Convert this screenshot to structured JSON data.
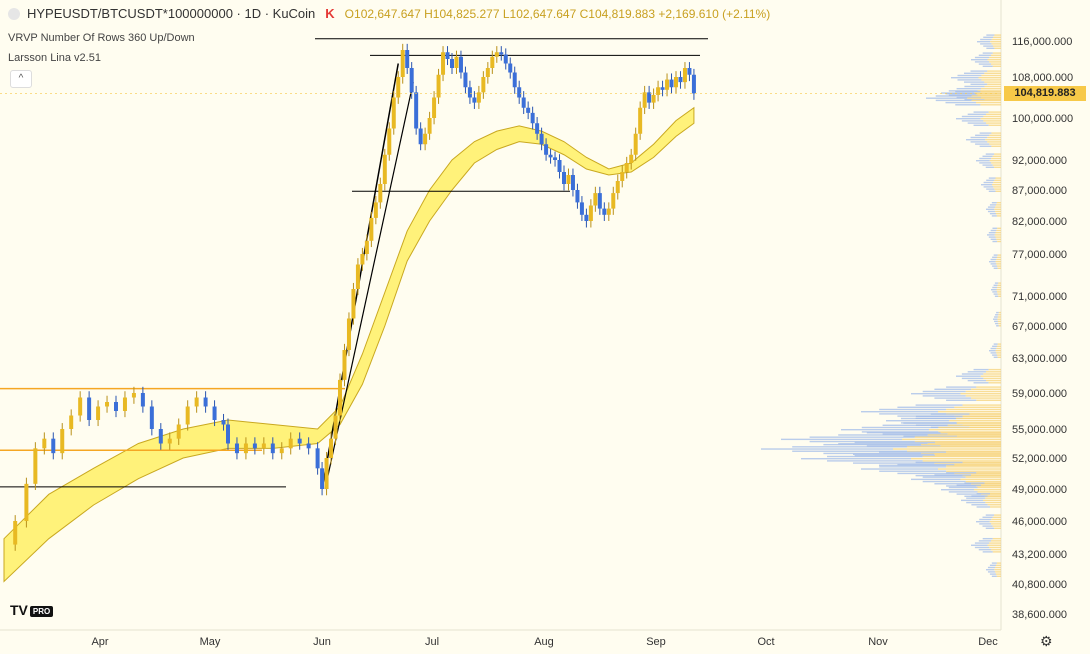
{
  "header": {
    "symbol": "HYPEUSDT/BTCUSDT*100000000 · 1D · KuCoin",
    "o_label": "O",
    "o": "102,647.647",
    "h_label": "H",
    "h": "104,825.277",
    "l_label": "L",
    "l": "102,647.647",
    "c_label": "C",
    "c": "104,819.883",
    "change": "+2,169.610 (+2.11%)"
  },
  "indicators": [
    "VRVP Number Of Rows 360 Up/Down",
    "Larsson Lina v2.51"
  ],
  "collapse_icon": "chevron-up-icon",
  "brand": {
    "logo": "TV",
    "badge": "PRO"
  },
  "last_price_label": "104,819.883",
  "colors": {
    "background": "#fffdf0",
    "up": "#e8b923",
    "down": "#3b6fd8",
    "band": "#fff27a",
    "accent": "#f7c948"
  },
  "chart_data": {
    "type": "candlestick",
    "x_axis_labels": [
      "Apr",
      "May",
      "Jun",
      "Jul",
      "Aug",
      "Sep",
      "Oct",
      "Nov",
      "Dec"
    ],
    "y_axis_labels": [
      "116,000.000",
      "108,000.000",
      "100,000.000",
      "92,000.000",
      "87,000.000",
      "82,000.000",
      "77,000.000",
      "71,000.000",
      "67,000.000",
      "63,000.000",
      "59,000.000",
      "55,000.000",
      "52,000.000",
      "49,000.000",
      "46,000.000",
      "43,200.000",
      "40,800.000",
      "38,600.000"
    ],
    "y_axis_values": [
      116000,
      108000,
      100000,
      92000,
      87000,
      82000,
      77000,
      71000,
      67000,
      63000,
      59000,
      55000,
      52000,
      49000,
      46000,
      43200,
      40800,
      38600
    ],
    "close_path": [
      [
        0,
        44000
      ],
      [
        5,
        46000
      ],
      [
        10,
        49500
      ],
      [
        14,
        53000
      ],
      [
        18,
        54000
      ],
      [
        22,
        52500
      ],
      [
        26,
        55000
      ],
      [
        30,
        56500
      ],
      [
        34,
        58500
      ],
      [
        38,
        56000
      ],
      [
        42,
        57500
      ],
      [
        46,
        58000
      ],
      [
        50,
        57000
      ],
      [
        54,
        58500
      ],
      [
        58,
        59000
      ],
      [
        62,
        57500
      ],
      [
        66,
        55000
      ],
      [
        70,
        53500
      ],
      [
        74,
        54000
      ],
      [
        78,
        55500
      ],
      [
        82,
        57500
      ],
      [
        86,
        58500
      ],
      [
        90,
        57500
      ],
      [
        94,
        56000
      ],
      [
        98,
        55500
      ],
      [
        100,
        53500
      ],
      [
        104,
        52500
      ],
      [
        108,
        53500
      ],
      [
        112,
        53000
      ],
      [
        116,
        53500
      ],
      [
        120,
        52500
      ],
      [
        124,
        53000
      ],
      [
        128,
        54000
      ],
      [
        132,
        53500
      ],
      [
        136,
        53000
      ],
      [
        140,
        51000
      ],
      [
        142,
        49000
      ],
      [
        144,
        52000
      ],
      [
        146,
        54000
      ],
      [
        148,
        56500
      ],
      [
        150,
        60500
      ],
      [
        152,
        64000
      ],
      [
        154,
        68000
      ],
      [
        156,
        72000
      ],
      [
        158,
        75500
      ],
      [
        160,
        77000
      ],
      [
        162,
        79000
      ],
      [
        164,
        82500
      ],
      [
        166,
        85000
      ],
      [
        168,
        88000
      ],
      [
        170,
        93000
      ],
      [
        172,
        98000
      ],
      [
        174,
        104000
      ],
      [
        176,
        108000
      ],
      [
        178,
        114000
      ],
      [
        180,
        110000
      ],
      [
        182,
        105000
      ],
      [
        184,
        98000
      ],
      [
        186,
        95000
      ],
      [
        188,
        97000
      ],
      [
        190,
        100000
      ],
      [
        192,
        104000
      ],
      [
        194,
        108500
      ],
      [
        196,
        113500
      ],
      [
        198,
        112000
      ],
      [
        200,
        110000
      ],
      [
        202,
        112500
      ],
      [
        204,
        109000
      ],
      [
        206,
        106000
      ],
      [
        208,
        104000
      ],
      [
        210,
        103000
      ],
      [
        212,
        105000
      ],
      [
        214,
        108000
      ],
      [
        216,
        110000
      ],
      [
        218,
        112500
      ],
      [
        220,
        113500
      ],
      [
        222,
        113000
      ],
      [
        224,
        111000
      ],
      [
        226,
        109000
      ],
      [
        228,
        106000
      ],
      [
        230,
        104000
      ],
      [
        232,
        102000
      ],
      [
        234,
        101000
      ],
      [
        236,
        99000
      ],
      [
        238,
        97000
      ],
      [
        240,
        95000
      ],
      [
        242,
        93000
      ],
      [
        244,
        92500
      ],
      [
        246,
        92000
      ],
      [
        248,
        90000
      ],
      [
        250,
        88000
      ],
      [
        252,
        89500
      ],
      [
        254,
        87000
      ],
      [
        256,
        85000
      ],
      [
        258,
        83000
      ],
      [
        260,
        82000
      ],
      [
        262,
        84500
      ],
      [
        264,
        86500
      ],
      [
        266,
        84000
      ],
      [
        268,
        83000
      ],
      [
        270,
        84000
      ],
      [
        272,
        86500
      ],
      [
        274,
        88500
      ],
      [
        276,
        90000
      ],
      [
        278,
        91500
      ],
      [
        280,
        93000
      ],
      [
        282,
        97000
      ],
      [
        284,
        102000
      ],
      [
        286,
        105000
      ],
      [
        288,
        103000
      ],
      [
        290,
        104500
      ],
      [
        292,
        106000
      ],
      [
        294,
        105500
      ],
      [
        296,
        107500
      ],
      [
        298,
        106000
      ],
      [
        300,
        108000
      ],
      [
        302,
        107000
      ],
      [
        304,
        110000
      ],
      [
        306,
        108500
      ],
      [
        308,
        104800
      ]
    ],
    "ribbon": [
      [
        0,
        41000,
        44500
      ],
      [
        20,
        44500,
        48500
      ],
      [
        40,
        47500,
        51000
      ],
      [
        60,
        50000,
        53500
      ],
      [
        80,
        52000,
        55000
      ],
      [
        100,
        53000,
        56000
      ],
      [
        120,
        53000,
        55500
      ],
      [
        140,
        53500,
        55000
      ],
      [
        150,
        55500,
        57500
      ],
      [
        160,
        60000,
        63500
      ],
      [
        170,
        67000,
        71500
      ],
      [
        180,
        76000,
        80500
      ],
      [
        190,
        82000,
        87000
      ],
      [
        200,
        87000,
        92000
      ],
      [
        210,
        91500,
        95500
      ],
      [
        220,
        94000,
        97500
      ],
      [
        230,
        95500,
        98500
      ],
      [
        240,
        95000,
        97500
      ],
      [
        250,
        93000,
        95500
      ],
      [
        260,
        90500,
        92500
      ],
      [
        270,
        89500,
        90500
      ],
      [
        280,
        90000,
        91500
      ],
      [
        290,
        92500,
        95000
      ],
      [
        300,
        96500,
        99500
      ],
      [
        308,
        99000,
        102000
      ]
    ],
    "horizontal_lines": [
      {
        "value": 59500,
        "color": "#f5a623"
      },
      {
        "value": 52800,
        "color": "#f5a623"
      },
      {
        "value": 49200,
        "color": "#000000"
      },
      {
        "value": 116500,
        "color": "#000000"
      },
      {
        "value": 112800,
        "color": "#000000"
      },
      {
        "value": 86800,
        "color": "#000000"
      }
    ],
    "trend_line": [
      [
        142,
        49000
      ],
      [
        176,
        111000
      ]
    ],
    "volume_profile": "up-down",
    "last_price": 104819.883
  }
}
